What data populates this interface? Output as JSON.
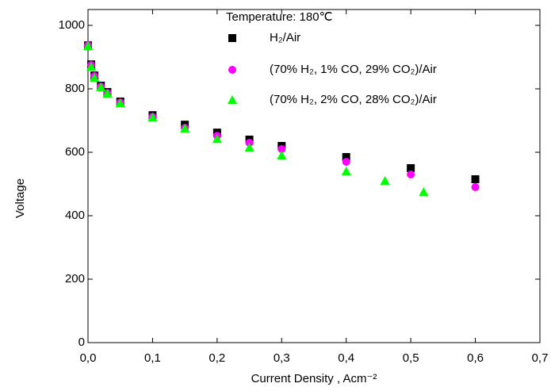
{
  "chart_data": {
    "type": "scatter",
    "title": "Temperature: 180℃",
    "x_label": "Current Density , Acm⁻²",
    "y_label": "Voltage",
    "xlim": [
      0,
      0.7
    ],
    "ylim": [
      0,
      1050
    ],
    "xticks": [
      {
        "value": 0,
        "label": "0,0"
      },
      {
        "value": 0.1,
        "label": "0,1"
      },
      {
        "value": 0.2,
        "label": "0,2"
      },
      {
        "value": 0.3,
        "label": "0,3"
      },
      {
        "value": 0.4,
        "label": "0,4"
      },
      {
        "value": 0.5,
        "label": "0,5"
      },
      {
        "value": 0.6,
        "label": "0,6"
      },
      {
        "value": 0.7,
        "label": "0,7"
      }
    ],
    "yticks": [
      0,
      200,
      400,
      600,
      800,
      1000
    ],
    "series": [
      {
        "name": "H₂/Air",
        "color": "#000000",
        "marker": "square",
        "x": [
          0,
          0.005,
          0.01,
          0.02,
          0.03,
          0.05,
          0.1,
          0.15,
          0.2,
          0.25,
          0.3,
          0.4,
          0.5,
          0.6
        ],
        "values": [
          937,
          877,
          842,
          810,
          790,
          760,
          717,
          687,
          662,
          640,
          620,
          585,
          550,
          515
        ]
      },
      {
        "name": "(70% H₂, 1% CO, 29% CO₂)/Air",
        "color": "#ff00ff",
        "marker": "circle",
        "x": [
          0,
          0.005,
          0.01,
          0.02,
          0.03,
          0.05,
          0.1,
          0.15,
          0.2,
          0.25,
          0.3,
          0.4,
          0.5,
          0.6
        ],
        "values": [
          937,
          875,
          840,
          807,
          787,
          757,
          712,
          677,
          652,
          630,
          610,
          570,
          530,
          490
        ]
      },
      {
        "name": "(70% H₂, 2% CO, 28% CO₂)/Air",
        "color": "#00ff00",
        "marker": "triangle",
        "x": [
          0,
          0.005,
          0.01,
          0.02,
          0.03,
          0.05,
          0.1,
          0.15,
          0.2,
          0.25,
          0.3,
          0.4,
          0.46,
          0.52
        ],
        "values": [
          935,
          870,
          835,
          805,
          785,
          755,
          710,
          675,
          642,
          615,
          590,
          540,
          510,
          475
        ]
      }
    ]
  }
}
